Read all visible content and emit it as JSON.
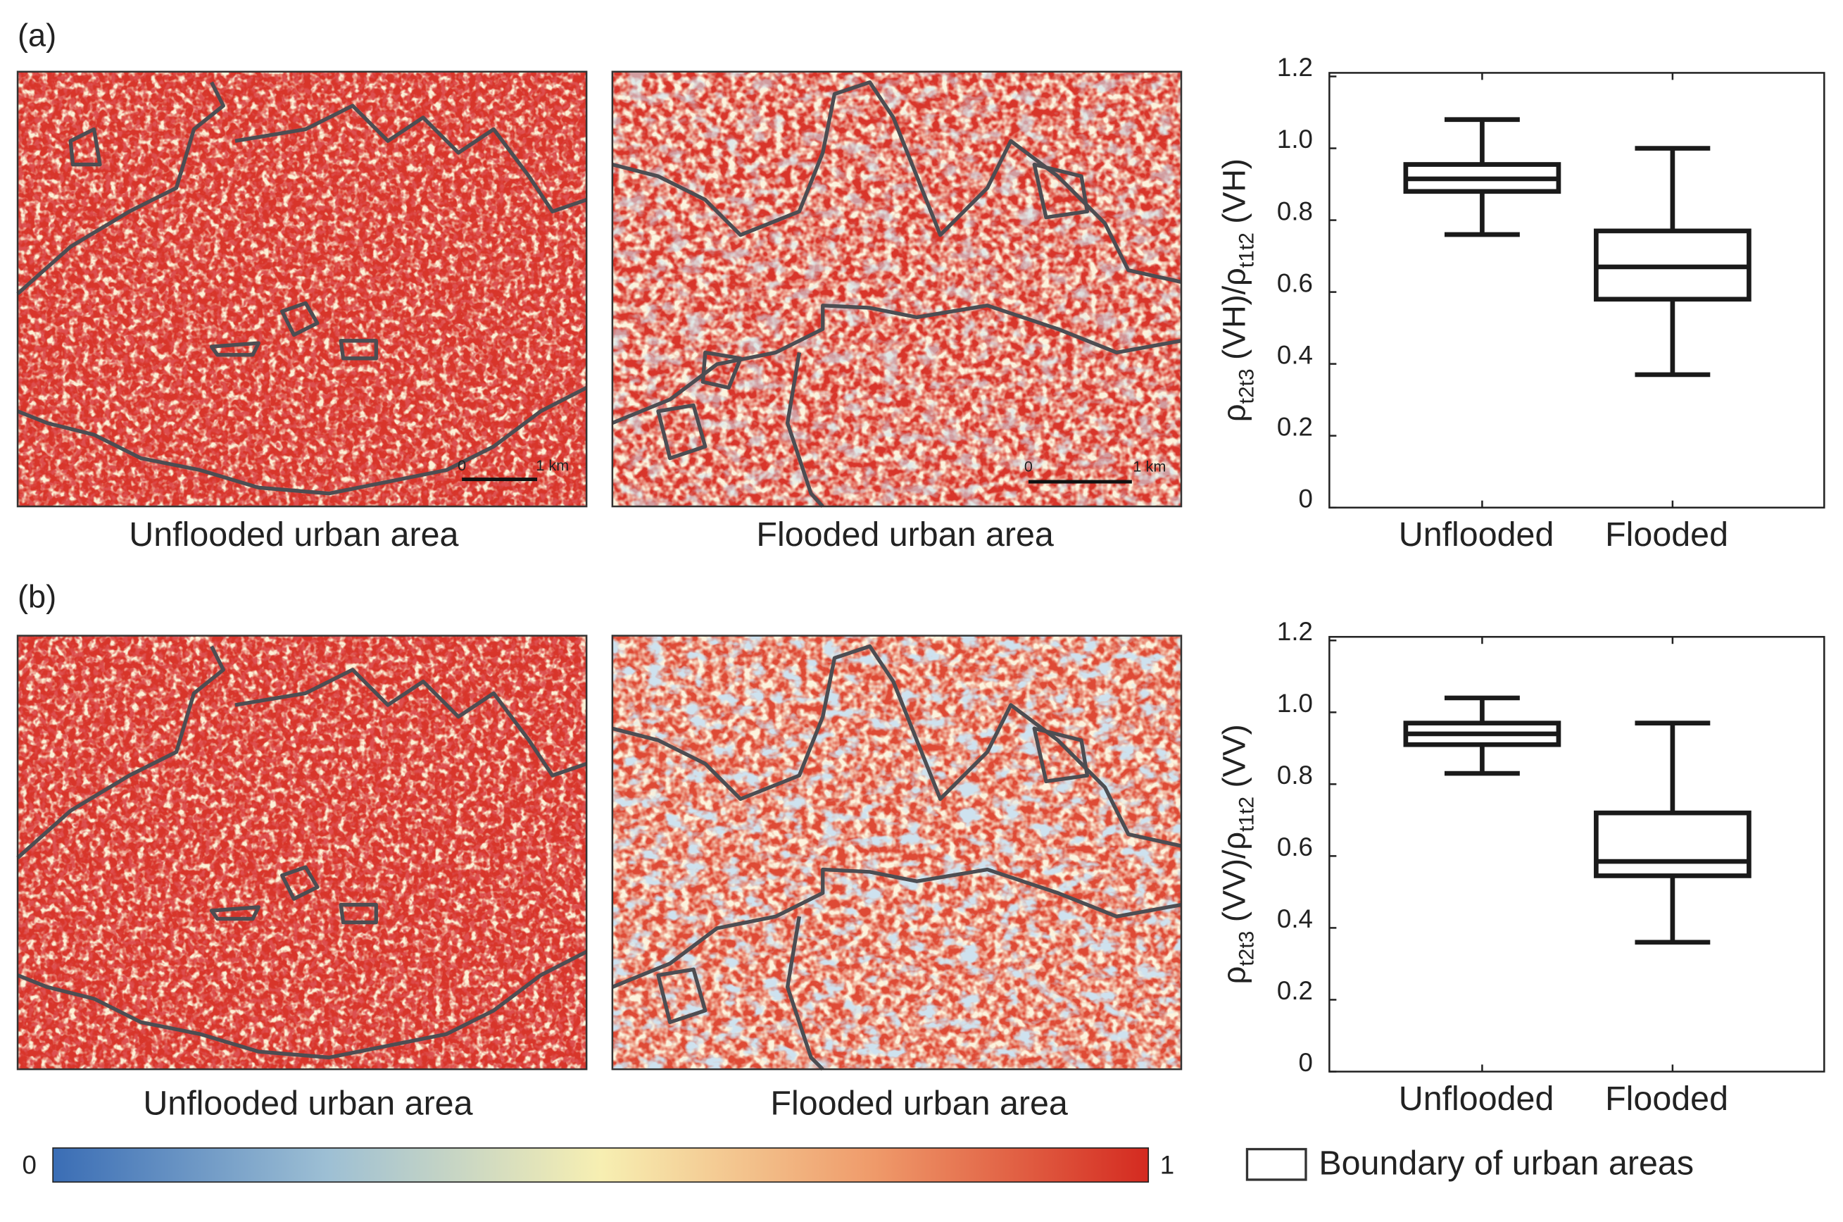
{
  "panels": [
    {
      "label": "(a)",
      "maps": [
        "Unflooded urban area",
        "Flooded urban area"
      ]
    },
    {
      "label": "(b)",
      "maps": [
        "Unflooded urban area",
        "Flooded urban area"
      ]
    }
  ],
  "scale_bar": {
    "start": "0",
    "end": "1 km"
  },
  "colorbar": {
    "min": 0,
    "max": 1
  },
  "legend": "Boundary of urban areas",
  "chart_data": [
    {
      "type": "box",
      "ylabel": [
        {
          "text": "ρ"
        },
        {
          "text": "t2t3",
          "sub": true
        },
        {
          "text": " (VH)/ρ"
        },
        {
          "text": "t1t2",
          "sub": true
        },
        {
          "text": " (VH)"
        }
      ],
      "categories": [
        "Unflooded",
        "Flooded"
      ],
      "boxes": [
        {
          "whislo": 0.76,
          "q1": 0.88,
          "med": 0.915,
          "q3": 0.955,
          "whishi": 1.08
        },
        {
          "whislo": 0.37,
          "q1": 0.58,
          "med": 0.67,
          "q3": 0.77,
          "whishi": 1.0
        }
      ],
      "color": "#1a1a1a",
      "ylim": [
        0,
        1.21
      ],
      "yticks": [
        0,
        0.2,
        0.4,
        0.6,
        0.8,
        {
          "value": 1,
          "label": "1.0"
        },
        1.2
      ]
    },
    {
      "type": "box",
      "ylabel": [
        {
          "text": "ρ"
        },
        {
          "text": "t2t3",
          "sub": true
        },
        {
          "text": " (VV)/ρ"
        },
        {
          "text": "t1t2",
          "sub": true
        },
        {
          "text": " (VV)"
        }
      ],
      "categories": [
        "Unflooded",
        "Flooded"
      ],
      "boxes": [
        {
          "whislo": 0.83,
          "q1": 0.91,
          "med": 0.94,
          "q3": 0.97,
          "whishi": 1.04
        },
        {
          "whislo": 0.36,
          "q1": 0.545,
          "med": 0.585,
          "q3": 0.72,
          "whishi": 0.97
        }
      ],
      "color": "#1a1a1a",
      "ylim": [
        0,
        1.21
      ],
      "yticks": [
        0,
        0.2,
        0.4,
        0.6,
        0.8,
        {
          "value": 1,
          "label": "1.0"
        },
        1.2
      ]
    }
  ]
}
